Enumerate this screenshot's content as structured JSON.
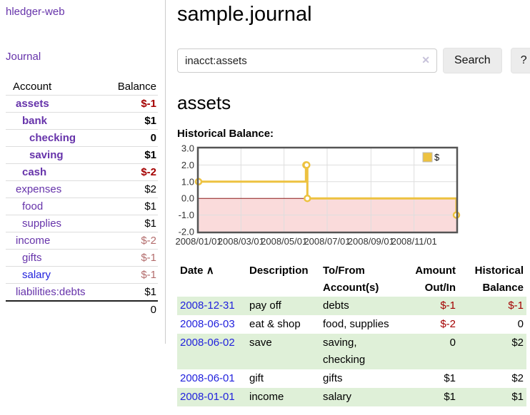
{
  "sidebar": {
    "app_title": "hledger-web",
    "journal_label": "Journal",
    "accounts_table": {
      "headers": {
        "account": "Account",
        "balance": "Balance"
      },
      "rows": [
        {
          "name": "assets",
          "level": 1,
          "bold": true,
          "balance": "$-1",
          "neg": true
        },
        {
          "name": "bank",
          "level": 2,
          "bold": true,
          "balance": "$1",
          "neg": false
        },
        {
          "name": "checking",
          "level": 3,
          "bold": true,
          "balance": "0",
          "neg": false
        },
        {
          "name": "saving",
          "level": 3,
          "bold": true,
          "balance": "$1",
          "neg": false
        },
        {
          "name": "cash",
          "level": 2,
          "bold": true,
          "balance": "$-2",
          "neg": true
        },
        {
          "name": "expenses",
          "level": 1,
          "bold": false,
          "balance": "$2",
          "neg": false
        },
        {
          "name": "food",
          "level": 2,
          "bold": false,
          "balance": "$1",
          "neg": false
        },
        {
          "name": "supplies",
          "level": 2,
          "bold": false,
          "balance": "$1",
          "neg": false
        },
        {
          "name": "income",
          "level": 1,
          "bold": false,
          "balance": "$-2",
          "neg": true
        },
        {
          "name": "gifts",
          "level": 2,
          "bold": false,
          "balance": "$-1",
          "neg": true
        },
        {
          "name": "salary",
          "level": 2,
          "bold": false,
          "balance": "$-1",
          "neg": true,
          "link_color": "blue"
        },
        {
          "name": "liabilities:debts",
          "level": 1,
          "bold": false,
          "balance": "$1",
          "neg": false
        }
      ],
      "total": "0"
    }
  },
  "header": {
    "title": "sample.journal"
  },
  "search": {
    "value": "inacct:assets",
    "placeholder": "",
    "clear_icon": "✕",
    "button_label": "Search",
    "help_label": "?"
  },
  "account_page": {
    "heading": "assets",
    "chart_label": "Historical Balance:"
  },
  "chart_data": {
    "type": "line",
    "step": true,
    "series": [
      {
        "name": "$",
        "color": "#edc240",
        "points": [
          [
            "2008-01-01",
            1.0
          ],
          [
            "2008-06-01",
            2.0
          ],
          [
            "2008-06-02",
            2.0
          ],
          [
            "2008-06-03",
            0.0
          ],
          [
            "2008-12-31",
            -1.0
          ]
        ]
      }
    ],
    "ylim": [
      -2.0,
      3.0
    ],
    "yticks": [
      3.0,
      2.0,
      1.0,
      0.0,
      -1.0,
      -2.0
    ],
    "xlim": [
      "2008-01-01",
      "2008-12-31"
    ],
    "xticks": [
      "2008/01/01",
      "2008/03/01",
      "2008/05/01",
      "2008/07/01",
      "2008/09/01",
      "2008/11/01"
    ],
    "legend": {
      "label": "$",
      "position": "top-right"
    },
    "grid": true,
    "negative_region_color": "#fadbdb",
    "zero_line_color": "#8b1a1a",
    "line_color": "#edc240"
  },
  "transactions": {
    "headers": [
      "Date",
      "Description",
      "To/From Account(s)",
      "Amount Out/In",
      "Historical Balance"
    ],
    "sort_icon": "∧",
    "rows": [
      {
        "date": "2008-12-31",
        "description": "pay off",
        "accounts": "debts",
        "amount": "$-1",
        "balance": "$-1"
      },
      {
        "date": "2008-06-03",
        "description": "eat & shop",
        "accounts": "food, supplies",
        "amount": "$-2",
        "balance": "0"
      },
      {
        "date": "2008-06-02",
        "description": "save",
        "accounts": "saving, checking",
        "amount": "0",
        "balance": "$2"
      },
      {
        "date": "2008-06-01",
        "description": "gift",
        "accounts": "gifts",
        "amount": "$1",
        "balance": "$2"
      },
      {
        "date": "2008-01-01",
        "description": "income",
        "accounts": "salary",
        "amount": "$1",
        "balance": "$1"
      }
    ]
  },
  "colors": {
    "link_purple": "#6633aa",
    "link_blue": "#2222dd",
    "negative_strong": "#a40000",
    "negative_soft": "#b36c6c",
    "row_green": "#dff0d8",
    "chart_gold": "#edc240",
    "chart_pink": "#fadbdb",
    "zero_line": "#8b1a1a"
  }
}
